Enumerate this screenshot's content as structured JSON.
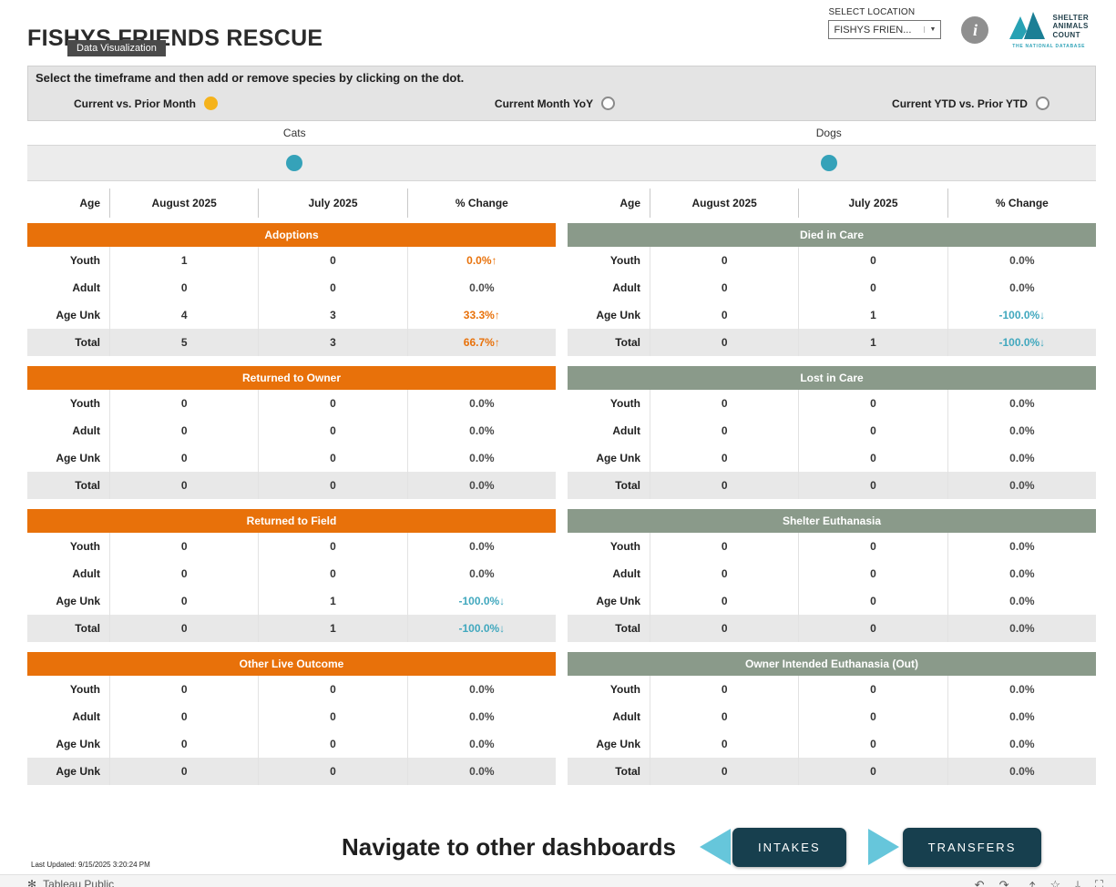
{
  "header": {
    "title": "FISHYS FRIENDS RESCUE",
    "tooltip": "Data Visualization",
    "select_location_label": "SELECT LOCATION",
    "select_location_value": "FISHYS FRIEN...",
    "info_icon_glyph": "i",
    "logo_lines": [
      "SHELTER",
      "ANIMALS",
      "COUNT"
    ],
    "logo_tagline": "THE NATIONAL DATABASE"
  },
  "instruction": "Select the timeframe and then add or remove species by clicking on the dot.",
  "timeframe": {
    "options": [
      {
        "label": "Current vs. Prior Month",
        "selected": true
      },
      {
        "label": "Current Month YoY",
        "selected": false
      },
      {
        "label": "Current YTD vs. Prior YTD",
        "selected": false
      }
    ]
  },
  "species": [
    {
      "label": "Cats"
    },
    {
      "label": "Dogs"
    }
  ],
  "table_columns": [
    "Age",
    "August 2025",
    "July 2025",
    "% Change"
  ],
  "groups": [
    {
      "species": "Cats",
      "theme": "orange",
      "sections": [
        {
          "title": "Adoptions",
          "rows": [
            {
              "label": "Youth",
              "values": [
                "1",
                "0"
              ],
              "change": "0.0%↑",
              "trend": "up",
              "total": false
            },
            {
              "label": "Adult",
              "values": [
                "0",
                "0"
              ],
              "change": "0.0%",
              "trend": "flat",
              "total": false
            },
            {
              "label": "Age Unk",
              "values": [
                "4",
                "3"
              ],
              "change": "33.3%↑",
              "trend": "up",
              "total": false
            },
            {
              "label": "Total",
              "values": [
                "5",
                "3"
              ],
              "change": "66.7%↑",
              "trend": "up",
              "total": true
            }
          ]
        },
        {
          "title": "Returned to Owner",
          "rows": [
            {
              "label": "Youth",
              "values": [
                "0",
                "0"
              ],
              "change": "0.0%",
              "trend": "flat",
              "total": false
            },
            {
              "label": "Adult",
              "values": [
                "0",
                "0"
              ],
              "change": "0.0%",
              "trend": "flat",
              "total": false
            },
            {
              "label": "Age Unk",
              "values": [
                "0",
                "0"
              ],
              "change": "0.0%",
              "trend": "flat",
              "total": false
            },
            {
              "label": "Total",
              "values": [
                "0",
                "0"
              ],
              "change": "0.0%",
              "trend": "flat",
              "total": true
            }
          ]
        },
        {
          "title": "Returned to Field",
          "rows": [
            {
              "label": "Youth",
              "values": [
                "0",
                "0"
              ],
              "change": "0.0%",
              "trend": "flat",
              "total": false
            },
            {
              "label": "Adult",
              "values": [
                "0",
                "0"
              ],
              "change": "0.0%",
              "trend": "flat",
              "total": false
            },
            {
              "label": "Age Unk",
              "values": [
                "0",
                "1"
              ],
              "change": "-100.0%↓",
              "trend": "down",
              "total": false
            },
            {
              "label": "Total",
              "values": [
                "0",
                "1"
              ],
              "change": "-100.0%↓",
              "trend": "down",
              "total": true
            }
          ]
        },
        {
          "title": "Other Live Outcome",
          "rows": [
            {
              "label": "Youth",
              "values": [
                "0",
                "0"
              ],
              "change": "0.0%",
              "trend": "flat",
              "total": false
            },
            {
              "label": "Adult",
              "values": [
                "0",
                "0"
              ],
              "change": "0.0%",
              "trend": "flat",
              "total": false
            },
            {
              "label": "Age Unk",
              "values": [
                "0",
                "0"
              ],
              "change": "0.0%",
              "trend": "flat",
              "total": false
            },
            {
              "label": "Age Unk",
              "values": [
                "0",
                "0"
              ],
              "change": "0.0%",
              "trend": "flat",
              "total": true
            }
          ]
        }
      ]
    },
    {
      "species": "Dogs",
      "theme": "sage",
      "sections": [
        {
          "title": "Died in Care",
          "rows": [
            {
              "label": "Youth",
              "values": [
                "0",
                "0"
              ],
              "change": "0.0%",
              "trend": "flat",
              "total": false
            },
            {
              "label": "Adult",
              "values": [
                "0",
                "0"
              ],
              "change": "0.0%",
              "trend": "flat",
              "total": false
            },
            {
              "label": "Age Unk",
              "values": [
                "0",
                "1"
              ],
              "change": "-100.0%↓",
              "trend": "down",
              "total": false
            },
            {
              "label": "Total",
              "values": [
                "0",
                "1"
              ],
              "change": "-100.0%↓",
              "trend": "down",
              "total": true
            }
          ]
        },
        {
          "title": "Lost in Care",
          "rows": [
            {
              "label": "Youth",
              "values": [
                "0",
                "0"
              ],
              "change": "0.0%",
              "trend": "flat",
              "total": false
            },
            {
              "label": "Adult",
              "values": [
                "0",
                "0"
              ],
              "change": "0.0%",
              "trend": "flat",
              "total": false
            },
            {
              "label": "Age Unk",
              "values": [
                "0",
                "0"
              ],
              "change": "0.0%",
              "trend": "flat",
              "total": false
            },
            {
              "label": "Total",
              "values": [
                "0",
                "0"
              ],
              "change": "0.0%",
              "trend": "flat",
              "total": true
            }
          ]
        },
        {
          "title": "Shelter Euthanasia",
          "rows": [
            {
              "label": "Youth",
              "values": [
                "0",
                "0"
              ],
              "change": "0.0%",
              "trend": "flat",
              "total": false
            },
            {
              "label": "Adult",
              "values": [
                "0",
                "0"
              ],
              "change": "0.0%",
              "trend": "flat",
              "total": false
            },
            {
              "label": "Age Unk",
              "values": [
                "0",
                "0"
              ],
              "change": "0.0%",
              "trend": "flat",
              "total": false
            },
            {
              "label": "Total",
              "values": [
                "0",
                "0"
              ],
              "change": "0.0%",
              "trend": "flat",
              "total": true
            }
          ]
        },
        {
          "title": "Owner Intended Euthanasia (Out)",
          "rows": [
            {
              "label": "Youth",
              "values": [
                "0",
                "0"
              ],
              "change": "0.0%",
              "trend": "flat",
              "total": false
            },
            {
              "label": "Adult",
              "values": [
                "0",
                "0"
              ],
              "change": "0.0%",
              "trend": "flat",
              "total": false
            },
            {
              "label": "Age Unk",
              "values": [
                "0",
                "0"
              ],
              "change": "0.0%",
              "trend": "flat",
              "total": false
            },
            {
              "label": "Total",
              "values": [
                "0",
                "0"
              ],
              "change": "0.0%",
              "trend": "flat",
              "total": true
            }
          ]
        }
      ]
    }
  ],
  "footer": {
    "last_updated": "Last Updated: 9/15/2025 3:20:24 PM",
    "navigate_label": "Navigate to other dashboards",
    "buttons": [
      {
        "label": "INTAKES",
        "arrow": "left"
      },
      {
        "label": "TRANSFERS",
        "arrow": "right"
      }
    ]
  },
  "toolbar": {
    "brand": "Tableau Public",
    "icons": [
      "undo",
      "redo",
      "share",
      "star",
      "download",
      "fullscreen"
    ],
    "icon_glyphs": {
      "undo": "↶",
      "redo": "↷",
      "share": "⤴",
      "star": "☆",
      "download": "⤓",
      "fullscreen": "⛶"
    }
  },
  "colors": {
    "accent_orange": "#E8710A",
    "accent_sage": "#8A9A8A",
    "accent_teal": "#35A2B9",
    "selected_yellow": "#F5B31C",
    "button_dark": "#173F4E",
    "change_up": "#E8710A",
    "change_down": "#41A8BE",
    "arrow_teal": "#66C6DB"
  }
}
